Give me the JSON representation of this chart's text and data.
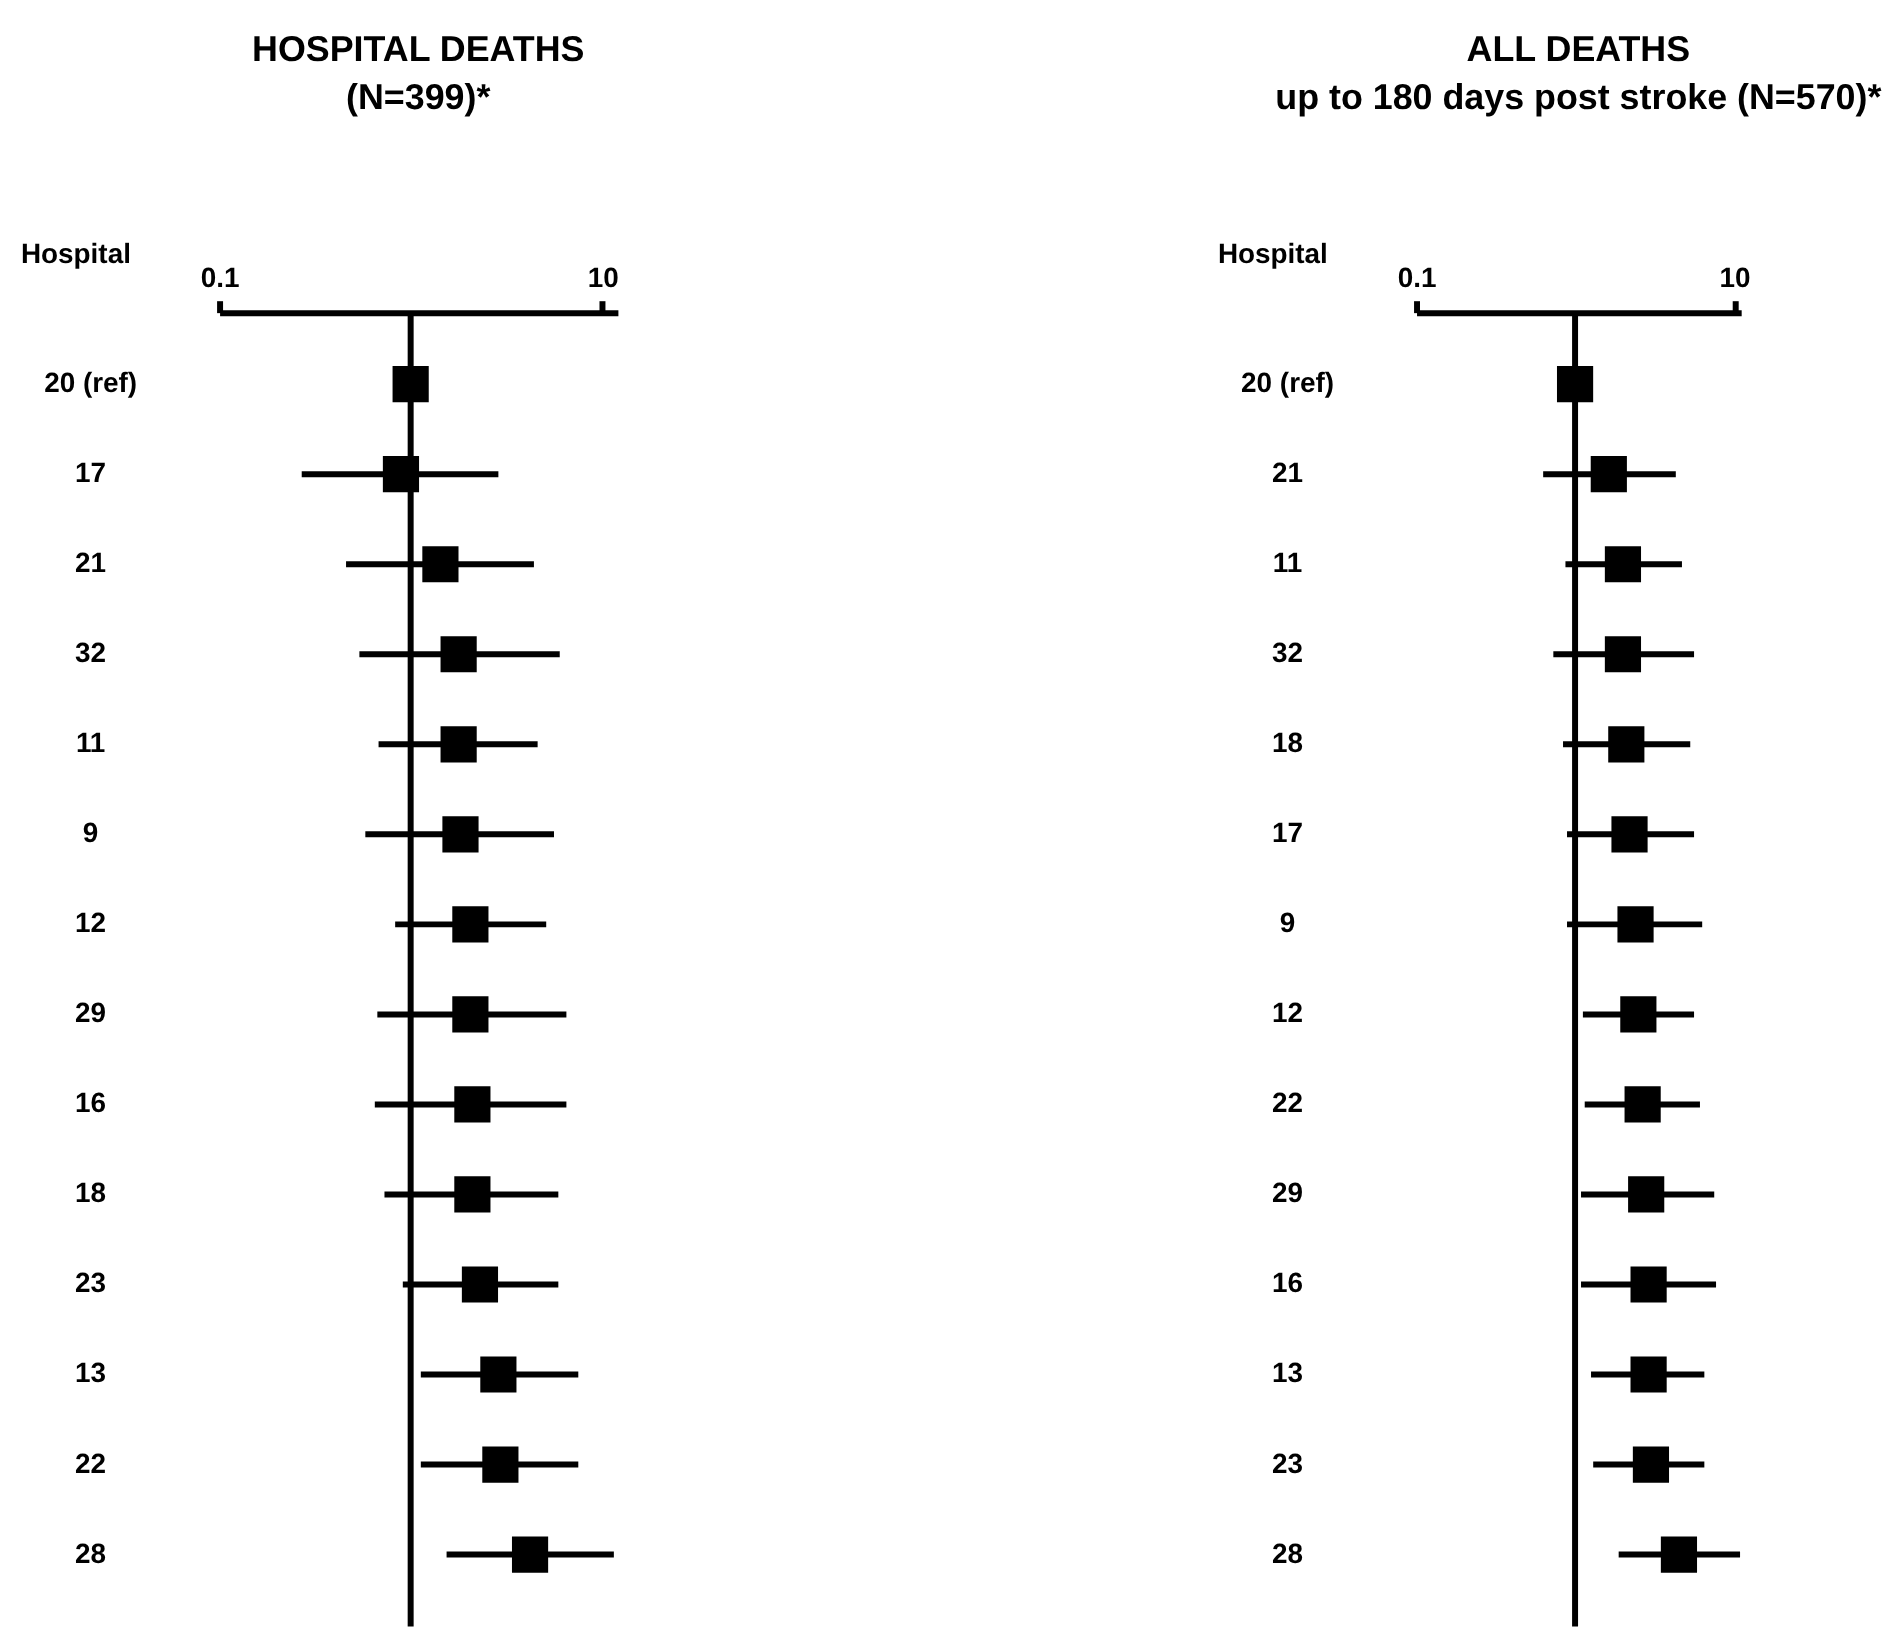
{
  "chart_data": [
    {
      "type": "scatter",
      "orientation": "horizontal",
      "title": "HOSPITAL DEATHS\n(N=399)*",
      "ylabel": "Hospital",
      "log": "x",
      "marker": "square",
      "grid": false,
      "legend": false,
      "categories": [
        "20 (ref)",
        "17",
        "21",
        "32",
        "11",
        "9",
        "12",
        "29",
        "16",
        "18",
        "23",
        "13",
        "22",
        "28"
      ],
      "xlim": [
        0.1,
        12
      ],
      "xticks": [
        0.1,
        10
      ],
      "ref_lines": [
        {
          "axis": "x",
          "value": 1,
          "color": "#000000"
        }
      ],
      "series": [
        {
          "color": "#000000",
          "values": [
            1.0,
            0.89,
            1.43,
            1.78,
            1.78,
            1.82,
            2.05,
            2.05,
            2.1,
            2.1,
            2.3,
            2.87,
            2.94,
            4.2
          ],
          "errors": [
            null,
            [
              0.27,
              2.87
            ],
            [
              0.46,
              4.4
            ],
            [
              0.54,
              6.0
            ],
            [
              0.68,
              4.6
            ],
            [
              0.58,
              5.6
            ],
            [
              0.83,
              5.1
            ],
            [
              0.67,
              6.5
            ],
            [
              0.65,
              6.5
            ],
            [
              0.73,
              5.9
            ],
            [
              0.91,
              5.9
            ],
            [
              1.13,
              7.5
            ],
            [
              1.13,
              7.5
            ],
            [
              1.54,
              11.5
            ]
          ]
        }
      ]
    },
    {
      "type": "scatter",
      "orientation": "horizontal",
      "title": "ALL DEATHS\nup to 180 days post stroke (N=570)*",
      "ylabel": "Hospital",
      "log": "x",
      "marker": "square",
      "grid": false,
      "legend": false,
      "categories": [
        "20 (ref)",
        "21",
        "11",
        "32",
        "18",
        "17",
        "9",
        "12",
        "22",
        "29",
        "16",
        "13",
        "23",
        "28"
      ],
      "xlim": [
        0.1,
        11
      ],
      "xticks": [
        0.1,
        10
      ],
      "ref_lines": [
        {
          "axis": "x",
          "value": 1,
          "color": "#000000"
        }
      ],
      "series": [
        {
          "color": "#000000",
          "values": [
            1.0,
            1.63,
            2.0,
            2.0,
            2.1,
            2.2,
            2.4,
            2.5,
            2.66,
            2.8,
            2.9,
            2.9,
            3.0,
            4.5
          ],
          "errors": [
            null,
            [
              0.63,
              4.3
            ],
            [
              0.87,
              4.7
            ],
            [
              0.73,
              5.6
            ],
            [
              0.84,
              5.3
            ],
            [
              0.89,
              5.6
            ],
            [
              0.89,
              6.3
            ],
            [
              1.12,
              5.6
            ],
            [
              1.15,
              6.1
            ],
            [
              1.09,
              7.5
            ],
            [
              1.09,
              7.7
            ],
            [
              1.26,
              6.5
            ],
            [
              1.3,
              6.5
            ],
            [
              1.88,
              10.9
            ]
          ]
        }
      ]
    }
  ]
}
